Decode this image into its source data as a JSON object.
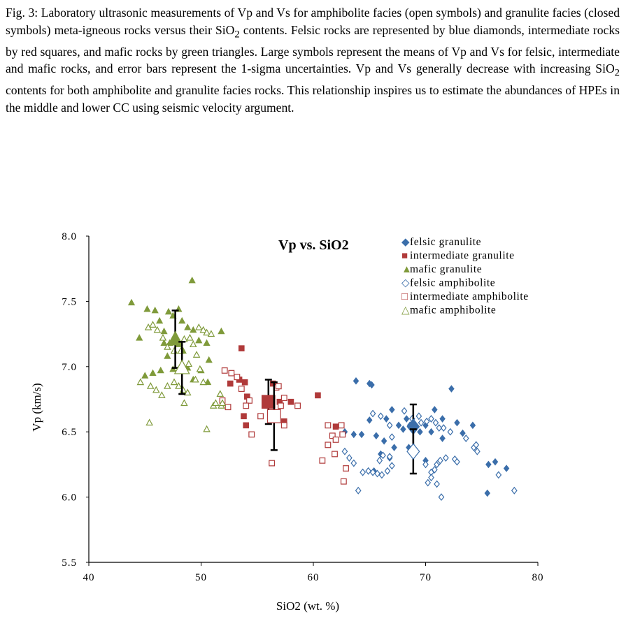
{
  "caption": {
    "part1": "Fig. 3: Laboratory ultrasonic measurements of Vp and Vs for amphibolite facies (open symbols) and granulite facies (closed symbols) meta-igneous rocks versus their SiO",
    "sub1": "2",
    "part2": " contents. Felsic rocks are represented by blue diamonds, intermediate rocks by red squares, and mafic rocks by green triangles. Large symbols represent the means of Vp and Vs for felsic, intermediate and mafic rocks, and error bars represent the 1-sigma uncertainties. Vp and Vs generally decrease with increasing SiO",
    "sub2": "2",
    "part3": " contents for both amphibolite and granulite facies rocks. This relationship inspires us to estimate the abundances of HPEs in the middle and lower CC using seismic velocity argument."
  },
  "chart_data": {
    "type": "scatter",
    "title": "Vp vs. SiO2",
    "xlabel": "SiO2 (wt. %)",
    "ylabel": "Vp (km/s)",
    "xlim": [
      40,
      80
    ],
    "ylim": [
      5.5,
      8.0
    ],
    "xticks": [
      "40",
      "50",
      "60",
      "70",
      "80"
    ],
    "yticks": [
      "5.5",
      "6.0",
      "6.5",
      "7.0",
      "7.5",
      "8.0"
    ],
    "legend_position": "top-right",
    "colors": {
      "felsic": "#3b6eaa",
      "intermediate": "#b03a3a",
      "mafic": "#7f9a3a"
    },
    "series": [
      {
        "name": "felsic granulite",
        "marker": "diamond",
        "filled": true,
        "color": "#3b6eaa",
        "points": [
          [
            63.8,
            6.89
          ],
          [
            65.0,
            6.87
          ],
          [
            65.2,
            6.86
          ],
          [
            67.0,
            6.67
          ],
          [
            70.8,
            6.67
          ],
          [
            72.3,
            6.83
          ],
          [
            62.8,
            6.5
          ],
          [
            63.6,
            6.48
          ],
          [
            64.3,
            6.48
          ],
          [
            65.0,
            6.59
          ],
          [
            65.6,
            6.47
          ],
          [
            66.3,
            6.43
          ],
          [
            66.5,
            6.6
          ],
          [
            67.2,
            6.38
          ],
          [
            67.6,
            6.55
          ],
          [
            68.0,
            6.52
          ],
          [
            68.3,
            6.6
          ],
          [
            68.6,
            6.55
          ],
          [
            69.0,
            6.53
          ],
          [
            69.5,
            6.5
          ],
          [
            70.0,
            6.55
          ],
          [
            70.5,
            6.5
          ],
          [
            71.5,
            6.45
          ],
          [
            71.5,
            6.6
          ],
          [
            72.8,
            6.57
          ],
          [
            73.3,
            6.49
          ],
          [
            74.2,
            6.55
          ],
          [
            66.0,
            6.33
          ],
          [
            68.5,
            6.38
          ],
          [
            70.0,
            6.28
          ],
          [
            65.4,
            6.2
          ],
          [
            66.8,
            6.3
          ],
          [
            75.6,
            6.25
          ],
          [
            76.2,
            6.27
          ],
          [
            77.2,
            6.22
          ],
          [
            75.5,
            6.03
          ]
        ]
      },
      {
        "name": "intermediate granulite",
        "marker": "square",
        "filled": true,
        "color": "#b03a3a",
        "points": [
          [
            53.6,
            7.14
          ],
          [
            52.6,
            6.87
          ],
          [
            53.4,
            6.9
          ],
          [
            53.9,
            6.88
          ],
          [
            54.1,
            6.77
          ],
          [
            56.4,
            6.87
          ],
          [
            57.0,
            6.73
          ],
          [
            58.0,
            6.73
          ],
          [
            60.4,
            6.78
          ],
          [
            53.8,
            6.62
          ],
          [
            54.0,
            6.55
          ],
          [
            57.4,
            6.58
          ],
          [
            62.0,
            6.54
          ]
        ]
      },
      {
        "name": "mafic granulite",
        "marker": "triangle",
        "filled": true,
        "color": "#7f9a3a",
        "points": [
          [
            49.2,
            7.66
          ],
          [
            43.8,
            7.49
          ],
          [
            44.5,
            7.22
          ],
          [
            45.2,
            7.44
          ],
          [
            45.9,
            7.43
          ],
          [
            47.1,
            7.42
          ],
          [
            47.5,
            7.39
          ],
          [
            46.3,
            7.35
          ],
          [
            46.7,
            7.27
          ],
          [
            48.0,
            7.44
          ],
          [
            48.3,
            7.35
          ],
          [
            48.8,
            7.3
          ],
          [
            49.3,
            7.28
          ],
          [
            49.8,
            7.2
          ],
          [
            50.5,
            7.18
          ],
          [
            50.7,
            7.05
          ],
          [
            51.8,
            7.27
          ],
          [
            46.7,
            7.18
          ],
          [
            47.2,
            7.18
          ],
          [
            47.6,
            7.22
          ],
          [
            48.0,
            7.17
          ],
          [
            48.4,
            7.12
          ],
          [
            47.0,
            7.08
          ],
          [
            46.4,
            6.97
          ],
          [
            45.7,
            6.95
          ],
          [
            47.5,
            6.98
          ],
          [
            48.2,
            6.98
          ],
          [
            48.8,
            6.99
          ],
          [
            49.3,
            6.9
          ],
          [
            50.0,
            6.97
          ],
          [
            50.6,
            6.88
          ],
          [
            45.0,
            6.93
          ]
        ]
      },
      {
        "name": "felsic amphibolite",
        "marker": "diamond",
        "filled": false,
        "color": "#3b6eaa",
        "points": [
          [
            65.3,
            6.64
          ],
          [
            66.0,
            6.62
          ],
          [
            66.8,
            6.55
          ],
          [
            67.0,
            6.46
          ],
          [
            68.1,
            6.66
          ],
          [
            68.8,
            6.6
          ],
          [
            69.4,
            6.62
          ],
          [
            69.6,
            6.57
          ],
          [
            70.1,
            6.58
          ],
          [
            70.5,
            6.6
          ],
          [
            70.9,
            6.57
          ],
          [
            71.2,
            6.53
          ],
          [
            71.6,
            6.53
          ],
          [
            72.2,
            6.5
          ],
          [
            73.6,
            6.45
          ],
          [
            74.3,
            6.38
          ],
          [
            74.5,
            6.4
          ],
          [
            74.6,
            6.35
          ],
          [
            62.8,
            6.35
          ],
          [
            63.2,
            6.3
          ],
          [
            63.6,
            6.26
          ],
          [
            64.4,
            6.19
          ],
          [
            64.9,
            6.2
          ],
          [
            65.3,
            6.19
          ],
          [
            65.7,
            6.18
          ],
          [
            66.1,
            6.17
          ],
          [
            66.6,
            6.2
          ],
          [
            65.9,
            6.28
          ],
          [
            66.2,
            6.32
          ],
          [
            66.8,
            6.31
          ],
          [
            67.0,
            6.24
          ],
          [
            70.0,
            6.25
          ],
          [
            70.5,
            6.19
          ],
          [
            70.8,
            6.21
          ],
          [
            71.0,
            6.25
          ],
          [
            71.2,
            6.27
          ],
          [
            70.5,
            6.15
          ],
          [
            70.2,
            6.11
          ],
          [
            71.0,
            6.1
          ],
          [
            71.3,
            6.28
          ],
          [
            71.8,
            6.3
          ],
          [
            72.6,
            6.29
          ],
          [
            72.8,
            6.27
          ],
          [
            64.0,
            6.05
          ],
          [
            71.4,
            6.0
          ],
          [
            77.9,
            6.05
          ],
          [
            76.5,
            6.17
          ]
        ]
      },
      {
        "name": "intermediate amphibolite",
        "marker": "square",
        "filled": false,
        "color": "#b03a3a",
        "points": [
          [
            52.1,
            6.97
          ],
          [
            52.7,
            6.95
          ],
          [
            53.2,
            6.92
          ],
          [
            53.6,
            6.83
          ],
          [
            54.3,
            6.74
          ],
          [
            51.9,
            6.74
          ],
          [
            52.4,
            6.69
          ],
          [
            54.0,
            6.7
          ],
          [
            55.3,
            6.62
          ],
          [
            56.7,
            6.84
          ],
          [
            56.9,
            6.85
          ],
          [
            57.1,
            6.7
          ],
          [
            57.4,
            6.76
          ],
          [
            58.6,
            6.7
          ],
          [
            56.8,
            6.63
          ],
          [
            57.4,
            6.55
          ],
          [
            56.3,
            6.26
          ],
          [
            54.5,
            6.48
          ],
          [
            60.8,
            6.28
          ],
          [
            61.3,
            6.4
          ],
          [
            61.7,
            6.47
          ],
          [
            62.0,
            6.44
          ],
          [
            62.6,
            6.48
          ],
          [
            61.3,
            6.55
          ],
          [
            62.5,
            6.55
          ],
          [
            61.9,
            6.33
          ],
          [
            62.9,
            6.22
          ],
          [
            62.7,
            6.12
          ]
        ]
      },
      {
        "name": "mafic amphibolite",
        "marker": "triangle",
        "filled": false,
        "color": "#7f9a3a",
        "points": [
          [
            45.3,
            7.3
          ],
          [
            45.7,
            7.32
          ],
          [
            46.1,
            7.28
          ],
          [
            46.6,
            7.22
          ],
          [
            47.0,
            7.15
          ],
          [
            47.6,
            7.12
          ],
          [
            48.2,
            7.12
          ],
          [
            48.5,
            7.21
          ],
          [
            49.0,
            7.22
          ],
          [
            49.3,
            7.17
          ],
          [
            49.8,
            7.3
          ],
          [
            50.2,
            7.28
          ],
          [
            50.5,
            7.26
          ],
          [
            50.9,
            7.25
          ],
          [
            49.6,
            7.09
          ],
          [
            48.9,
            7.02
          ],
          [
            49.9,
            6.98
          ],
          [
            44.6,
            6.88
          ],
          [
            45.5,
            6.85
          ],
          [
            46.0,
            6.82
          ],
          [
            46.5,
            6.78
          ],
          [
            47.0,
            6.85
          ],
          [
            47.6,
            6.88
          ],
          [
            48.0,
            6.85
          ],
          [
            48.4,
            6.82
          ],
          [
            48.8,
            6.8
          ],
          [
            48.5,
            6.72
          ],
          [
            49.5,
            6.9
          ],
          [
            50.2,
            6.88
          ],
          [
            51.1,
            6.7
          ],
          [
            51.3,
            6.72
          ],
          [
            51.8,
            6.7
          ],
          [
            51.7,
            6.79
          ],
          [
            51.9,
            6.72
          ],
          [
            45.4,
            6.57
          ],
          [
            50.5,
            6.52
          ]
        ]
      }
    ],
    "means": [
      {
        "name": "felsic granulite mean",
        "marker": "diamond",
        "filled": true,
        "color": "#3b6eaa",
        "x": 68.9,
        "y": 6.54,
        "err": 0.17
      },
      {
        "name": "felsic amphibolite mean",
        "marker": "diamond",
        "filled": false,
        "color": "#3b6eaa",
        "x": 68.9,
        "y": 6.35,
        "err": 0.17
      },
      {
        "name": "intermediate granulite mean",
        "marker": "square",
        "filled": true,
        "color": "#b03a3a",
        "x": 56.0,
        "y": 6.73,
        "err": 0.17
      },
      {
        "name": "intermediate amphibolite mean",
        "marker": "square",
        "filled": false,
        "color": "#b03a3a",
        "x": 56.5,
        "y": 6.62,
        "err": 0.26
      },
      {
        "name": "mafic granulite mean",
        "marker": "triangle",
        "filled": true,
        "color": "#7f9a3a",
        "x": 47.7,
        "y": 7.21,
        "err": 0.22
      },
      {
        "name": "mafic amphibolite mean",
        "marker": "triangle",
        "filled": false,
        "color": "#7f9a3a",
        "x": 48.3,
        "y": 6.99,
        "err": 0.2
      }
    ],
    "legend": [
      {
        "marker_text": "◆",
        "label": "felsic granulite",
        "color": "#3b6eaa"
      },
      {
        "marker_text": "■",
        "label": "intermediate granulite",
        "color": "#b03a3a"
      },
      {
        "marker_text": "▲",
        "label": "mafic granulite",
        "color": "#7f9a3a"
      },
      {
        "marker_text": "◇",
        "label": "felsic amphibolite",
        "color": "#3b6eaa"
      },
      {
        "marker_text": "□",
        "label": "intermediate amphibolite",
        "color": "#b03a3a"
      },
      {
        "marker_text": "△",
        "label": "mafic amphibolite",
        "color": "#7f9a3a"
      }
    ]
  }
}
